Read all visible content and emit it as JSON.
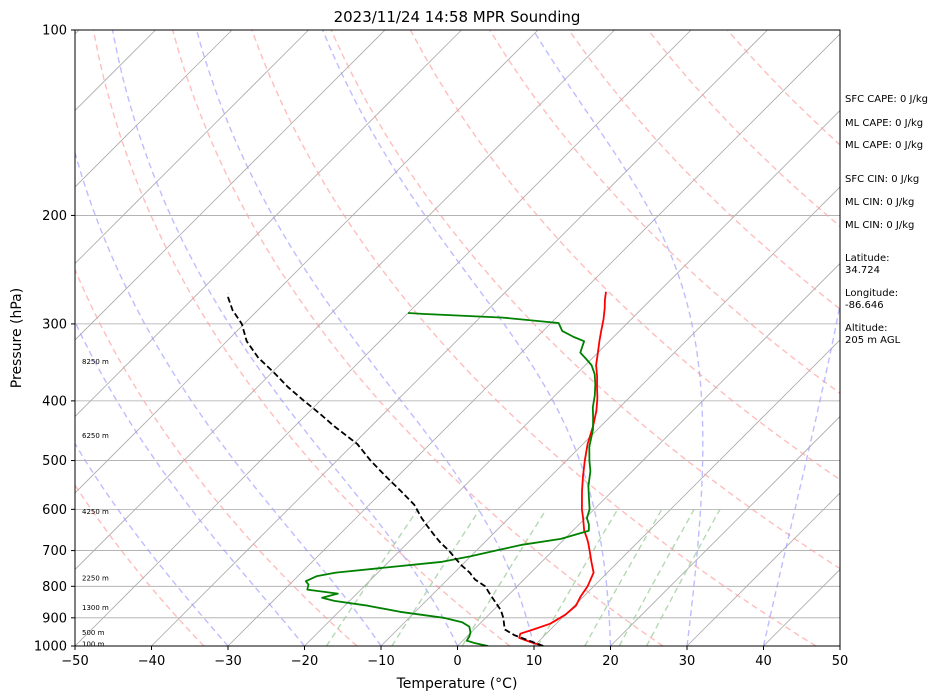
{
  "chart_data": {
    "type": "skew-t",
    "title": "2023/11/24 14:58 MPR Sounding",
    "xlabel": "Temperature (°C)",
    "ylabel": "Pressure (hPa)",
    "xlim": [
      -50,
      50
    ],
    "ylim": [
      1000,
      100
    ],
    "y_scale": "log",
    "grid": true,
    "x_ticks": [
      "−50",
      "−40",
      "−30",
      "−20",
      "−10",
      "0",
      "10",
      "20",
      "30",
      "40",
      "50"
    ],
    "y_ticks": [
      "100",
      "200",
      "300",
      "400",
      "500",
      "600",
      "700",
      "800",
      "900",
      "1000"
    ],
    "series": [
      {
        "color": "#ff0000",
        "style": "solid",
        "points": [
          [
            11.2,
            1000
          ],
          [
            9.0,
            985
          ],
          [
            7.0,
            970
          ],
          [
            6.6,
            955
          ],
          [
            7.8,
            940
          ],
          [
            9.2,
            920
          ],
          [
            10.0,
            890
          ],
          [
            10.2,
            860
          ],
          [
            9.6,
            830
          ],
          [
            9.2,
            800
          ],
          [
            8.2,
            760
          ],
          [
            6.5,
            730
          ],
          [
            4.8,
            700
          ],
          [
            3.6,
            680
          ],
          [
            2.6,
            665
          ],
          [
            1.5,
            650
          ],
          [
            -0.3,
            620
          ],
          [
            -1.6,
            600
          ],
          [
            -4.0,
            560
          ],
          [
            -5.8,
            530
          ],
          [
            -7.6,
            500
          ],
          [
            -9.4,
            470
          ],
          [
            -11.0,
            440
          ],
          [
            -12.6,
            415
          ],
          [
            -14.2,
            395
          ],
          [
            -15.6,
            380
          ],
          [
            -17.0,
            365
          ],
          [
            -18.6,
            350
          ],
          [
            -19.9,
            335
          ],
          [
            -21.3,
            320
          ],
          [
            -22.4,
            308
          ],
          [
            -23.6,
            295
          ],
          [
            -24.9,
            283
          ],
          [
            -26.0,
            274
          ],
          [
            -26.9,
            266
          ]
        ]
      },
      {
        "color": "#008000",
        "style": "solid",
        "points": [
          [
            4.0,
            1000
          ],
          [
            2.0,
            990
          ],
          [
            0.5,
            980
          ],
          [
            0.3,
            965
          ],
          [
            -0.1,
            950
          ],
          [
            -1.0,
            930
          ],
          [
            -2.5,
            915
          ],
          [
            -5.5,
            900
          ],
          [
            -12.0,
            880
          ],
          [
            -17.0,
            860
          ],
          [
            -22.0,
            845
          ],
          [
            -24.0,
            835
          ],
          [
            -22.5,
            822
          ],
          [
            -27.0,
            810
          ],
          [
            -27.5,
            795
          ],
          [
            -28.3,
            785
          ],
          [
            -27.5,
            770
          ],
          [
            -25.5,
            760
          ],
          [
            -13.0,
            730
          ],
          [
            -10.0,
            715
          ],
          [
            -7.5,
            700
          ],
          [
            -4.8,
            685
          ],
          [
            -0.5,
            670
          ],
          [
            2.1,
            650
          ],
          [
            1.3,
            635
          ],
          [
            0.2,
            620
          ],
          [
            -0.6,
            600
          ],
          [
            -2.5,
            570
          ],
          [
            -3.8,
            550
          ],
          [
            -5.5,
            520
          ],
          [
            -7.0,
            500
          ],
          [
            -8.8,
            475
          ],
          [
            -10.6,
            445
          ],
          [
            -12.2,
            425
          ],
          [
            -13.5,
            410
          ],
          [
            -14.8,
            392
          ],
          [
            -16.2,
            376
          ],
          [
            -17.6,
            362
          ],
          [
            -19.2,
            350
          ],
          [
            -20.7,
            342
          ],
          [
            -22.3,
            334
          ],
          [
            -23.3,
            320
          ],
          [
            -25.2,
            315
          ],
          [
            -27.5,
            308
          ],
          [
            -29.0,
            299
          ],
          [
            -37.0,
            293
          ],
          [
            -48.0,
            289
          ],
          [
            -50.0,
            288
          ]
        ]
      },
      {
        "color": "#000000",
        "style": "dashed",
        "points": [
          [
            11.2,
            1000
          ],
          [
            6.0,
            960
          ],
          [
            4.0,
            940
          ],
          [
            2.3,
            900
          ],
          [
            1.0,
            875
          ],
          [
            -0.7,
            850
          ],
          [
            -2.8,
            820
          ],
          [
            -4.2,
            800
          ],
          [
            -6.4,
            780
          ],
          [
            -8.0,
            760
          ],
          [
            -10.0,
            740
          ],
          [
            -11.8,
            720
          ],
          [
            -13.6,
            700
          ],
          [
            -15.7,
            680
          ],
          [
            -17.6,
            660
          ],
          [
            -19.5,
            640
          ],
          [
            -21.4,
            620
          ],
          [
            -24.1,
            590
          ],
          [
            -27.7,
            560
          ],
          [
            -31.6,
            530
          ],
          [
            -35.6,
            500
          ],
          [
            -39.5,
            470
          ],
          [
            -44.8,
            440
          ],
          [
            -48.3,
            420
          ],
          [
            -52.1,
            400
          ],
          [
            -56.0,
            380
          ],
          [
            -59.7,
            360
          ],
          [
            -63.8,
            340
          ],
          [
            -67.4,
            320
          ],
          [
            -70.3,
            300
          ],
          [
            -73.3,
            285
          ],
          [
            -75.5,
            272
          ],
          [
            -76.0,
            268
          ]
        ]
      }
    ],
    "dry_adiabats_theta_K": [
      200,
      220,
      240,
      260,
      280,
      300,
      320,
      340,
      360,
      380,
      400,
      420,
      440
    ],
    "moist_adiabats_start_C": [
      -30,
      -20,
      -10,
      0,
      10,
      20,
      30,
      40
    ],
    "mixing_ratio_lines_gkg": [
      1,
      2,
      4,
      8,
      12,
      16,
      20
    ],
    "isotherm_spacing_C": 10,
    "height_labels": [
      {
        "text": "100 m",
        "p": 993
      },
      {
        "text": "500 m",
        "p": 950
      },
      {
        "text": "1300 m",
        "p": 866
      },
      {
        "text": "2250 m",
        "p": 775
      },
      {
        "text": "4250 m",
        "p": 605
      },
      {
        "text": "6250 m",
        "p": 455
      },
      {
        "text": "8250 m",
        "p": 345
      }
    ],
    "side_info": [
      "SFC CAPE: 0 J/kg",
      "ML CAPE: 0 J/kg",
      "ML CAPE: 0 J/kg",
      "SFC CIN: 0 J/kg",
      "ML CIN: 0 J/kg",
      "ML CIN: 0 J/kg",
      "Latitude:",
      "34.724",
      "Longitude:",
      "-86.646",
      "Altitude:",
      "205 m AGL"
    ],
    "colors": {
      "temperature": "#ff0000",
      "dewpoint": "#008000",
      "parcel": "#000000",
      "dry_adiabat": "#ff9999",
      "moist_adiabat": "#9999ff",
      "mixing_ratio": "#99cc99",
      "isotherm": "#aaaaaa"
    }
  }
}
